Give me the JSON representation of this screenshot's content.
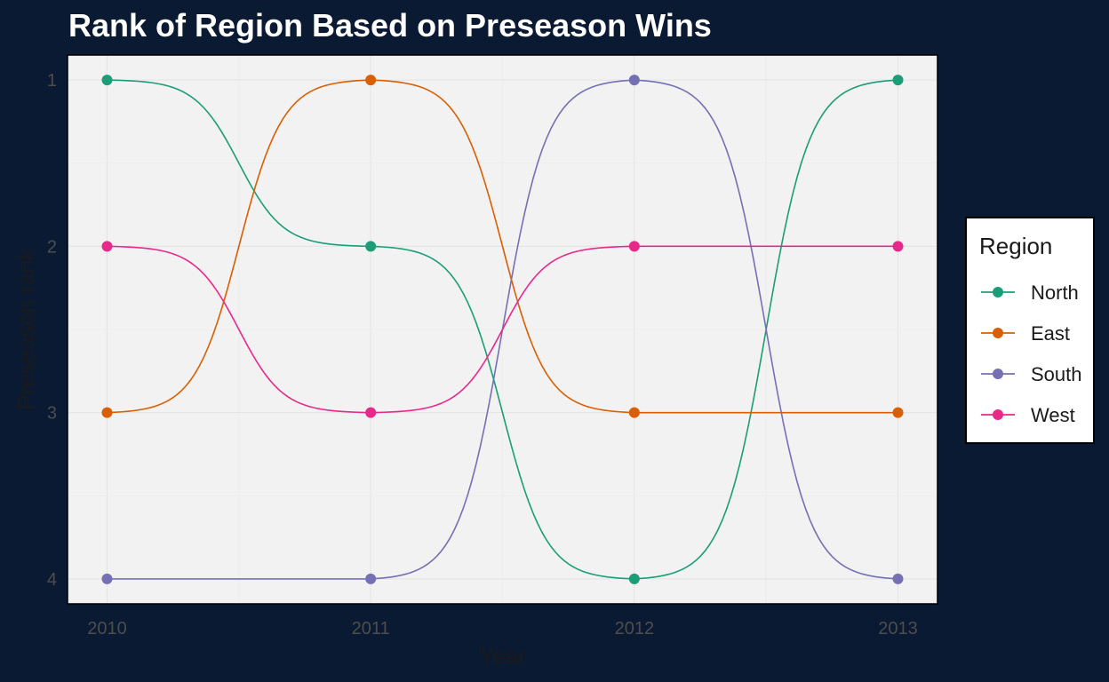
{
  "chart_data": {
    "type": "line",
    "title": "Rank of Region Based on Preseason Wins",
    "xlabel": "Year",
    "ylabel": "Preseason rank",
    "x": [
      2010,
      2011,
      2012,
      2013
    ],
    "x_tick_labels": [
      "2010",
      "2011",
      "2012",
      "2013"
    ],
    "y_tick_labels": [
      "1",
      "2",
      "3",
      "4"
    ],
    "ylim": [
      1,
      4
    ],
    "y_reversed": true,
    "grid": true,
    "legend_title": "Region",
    "legend_position": "right",
    "series": [
      {
        "name": "North",
        "color": "#1b9e77",
        "values": [
          1,
          2,
          4,
          1
        ]
      },
      {
        "name": "East",
        "color": "#d95f02",
        "values": [
          3,
          1,
          3,
          3
        ]
      },
      {
        "name": "South",
        "color": "#7570b3",
        "values": [
          4,
          4,
          1,
          4
        ]
      },
      {
        "name": "West",
        "color": "#e7298a",
        "values": [
          2,
          3,
          2,
          2
        ]
      }
    ]
  }
}
